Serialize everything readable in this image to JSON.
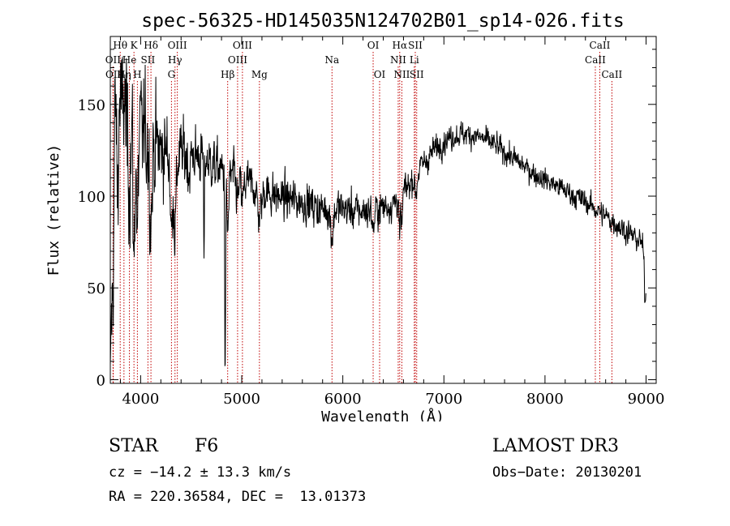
{
  "chart_data": {
    "type": "line",
    "title": "spec-56325-HD145035N124702B01_sp14-026.fits",
    "xlabel": "Wavelength (Å)",
    "ylabel": "Flux (relative)",
    "xlim": [
      3700,
      9100
    ],
    "ylim": [
      -2,
      187
    ],
    "xticks": [
      4000,
      5000,
      6000,
      7000,
      8000,
      9000
    ],
    "xtick_labels": [
      "4000",
      "5000",
      "6000",
      "7000",
      "8000",
      "9000"
    ],
    "yticks": [
      0,
      50,
      100,
      150
    ],
    "ytick_labels": [
      "0",
      "50",
      "100",
      "150"
    ],
    "grid": false,
    "line_color": "#000000",
    "marker_color": "#c00000",
    "continuum": [
      [
        3700,
        120
      ],
      [
        3760,
        128
      ],
      [
        3820,
        135
      ],
      [
        3900,
        138
      ],
      [
        4000,
        134
      ],
      [
        4100,
        130
      ],
      [
        4200,
        125
      ],
      [
        4300,
        123
      ],
      [
        4400,
        122
      ],
      [
        4500,
        123
      ],
      [
        4600,
        121
      ],
      [
        4700,
        118
      ],
      [
        4800,
        114
      ],
      [
        4900,
        111
      ],
      [
        5000,
        109
      ],
      [
        5100,
        106
      ],
      [
        5200,
        104
      ],
      [
        5300,
        101
      ],
      [
        5400,
        99
      ],
      [
        5500,
        98
      ],
      [
        5600,
        97
      ],
      [
        5700,
        95
      ],
      [
        5800,
        93
      ],
      [
        5900,
        94
      ],
      [
        6000,
        93
      ],
      [
        6100,
        92
      ],
      [
        6200,
        92
      ],
      [
        6300,
        92
      ],
      [
        6400,
        94
      ],
      [
        6500,
        96
      ],
      [
        6600,
        102
      ],
      [
        6700,
        110
      ],
      [
        6800,
        118
      ],
      [
        6900,
        125
      ],
      [
        7000,
        130
      ],
      [
        7100,
        133
      ],
      [
        7200,
        134
      ],
      [
        7300,
        133
      ],
      [
        7400,
        131
      ],
      [
        7500,
        128
      ],
      [
        7600,
        124
      ],
      [
        7700,
        120
      ],
      [
        7800,
        116
      ],
      [
        7900,
        112
      ],
      [
        8000,
        109
      ],
      [
        8100,
        106
      ],
      [
        8200,
        103
      ],
      [
        8300,
        100
      ],
      [
        8400,
        97
      ],
      [
        8500,
        93
      ],
      [
        8600,
        89
      ],
      [
        8700,
        85
      ],
      [
        8800,
        81
      ],
      [
        8850,
        79
      ],
      [
        8950,
        75
      ],
      [
        9000,
        68
      ]
    ],
    "features": [
      [
        3728,
        -40,
        10
      ],
      [
        3750,
        22,
        14
      ],
      [
        3771,
        -30,
        8
      ],
      [
        3798,
        24,
        10
      ],
      [
        3835,
        18,
        10
      ],
      [
        3889,
        -25,
        12
      ],
      [
        3934,
        -75,
        8
      ],
      [
        3968,
        -60,
        8
      ],
      [
        4102,
        -40,
        12
      ],
      [
        4305,
        -45,
        10
      ],
      [
        4341,
        -40,
        12
      ],
      [
        4481,
        -10,
        10
      ],
      [
        4627,
        -70,
        3
      ],
      [
        4836,
        -115,
        4
      ],
      [
        4861,
        -30,
        10
      ],
      [
        4959,
        -12,
        12
      ],
      [
        5007,
        -12,
        12
      ],
      [
        5175,
        -15,
        20
      ],
      [
        5893,
        -15,
        15
      ],
      [
        6302,
        -10,
        10
      ],
      [
        6563,
        -25,
        6
      ],
      [
        6584,
        -18,
        6
      ],
      [
        6717,
        -8,
        8
      ],
      [
        6730,
        -6,
        8
      ],
      [
        8993,
        -26,
        10
      ]
    ],
    "noise": [
      [
        3700,
        20
      ],
      [
        3900,
        22
      ],
      [
        4200,
        14
      ],
      [
        4500,
        9
      ],
      [
        5000,
        7
      ],
      [
        6000,
        6
      ],
      [
        6600,
        5
      ],
      [
        7000,
        4
      ],
      [
        8000,
        3.5
      ],
      [
        9000,
        4
      ]
    ],
    "lines": [
      {
        "label": "Hθ",
        "x": 3798,
        "row": 1
      },
      {
        "label": "OII",
        "x": 3727,
        "row": 2
      },
      {
        "label": "OII",
        "x": 3729,
        "row": 3
      },
      {
        "label": "Hη",
        "x": 3835,
        "row": 3
      },
      {
        "label": "He",
        "x": 3889,
        "row": 2
      },
      {
        "label": "K",
        "x": 3934,
        "row": 1
      },
      {
        "label": "H",
        "x": 3968,
        "row": 3
      },
      {
        "label": "SII",
        "x": 4072,
        "row": 2
      },
      {
        "label": "Hδ",
        "x": 4102,
        "row": 1
      },
      {
        "label": "OIII",
        "x": 4363,
        "row": 1
      },
      {
        "label": "Hγ",
        "x": 4340,
        "row": 2
      },
      {
        "label": "G",
        "x": 4305,
        "row": 3
      },
      {
        "label": "Hβ",
        "x": 4861,
        "row": 3
      },
      {
        "label": "OIII",
        "x": 5007,
        "row": 1
      },
      {
        "label": "OIII",
        "x": 4959,
        "row": 2
      },
      {
        "label": "Mg",
        "x": 5175,
        "row": 3
      },
      {
        "label": "Na",
        "x": 5893,
        "row": 2
      },
      {
        "label": "OI",
        "x": 6300,
        "row": 1
      },
      {
        "label": "OI",
        "x": 6364,
        "row": 3
      },
      {
        "label": "Hα",
        "x": 6563,
        "row": 1
      },
      {
        "label": "NII",
        "x": 6548,
        "row": 2
      },
      {
        "label": "NII",
        "x": 6584,
        "row": 3
      },
      {
        "label": "SII",
        "x": 6717,
        "row": 1
      },
      {
        "label": "Li",
        "x": 6707,
        "row": 2
      },
      {
        "label": "SII",
        "x": 6731,
        "row": 3
      },
      {
        "label": "CaII",
        "x": 8542,
        "row": 1
      },
      {
        "label": "CaII",
        "x": 8498,
        "row": 2
      },
      {
        "label": "CaII",
        "x": 8662,
        "row": 3
      }
    ]
  },
  "info": {
    "object_type": "STAR",
    "subclass": "F6",
    "survey": "LAMOST DR3",
    "redshift": "cz = −14.2 ± 13.3 km/s",
    "obs_date": "Obs−Date: 20130201",
    "coords": "RA = 220.36584, DEC =  13.01373"
  }
}
